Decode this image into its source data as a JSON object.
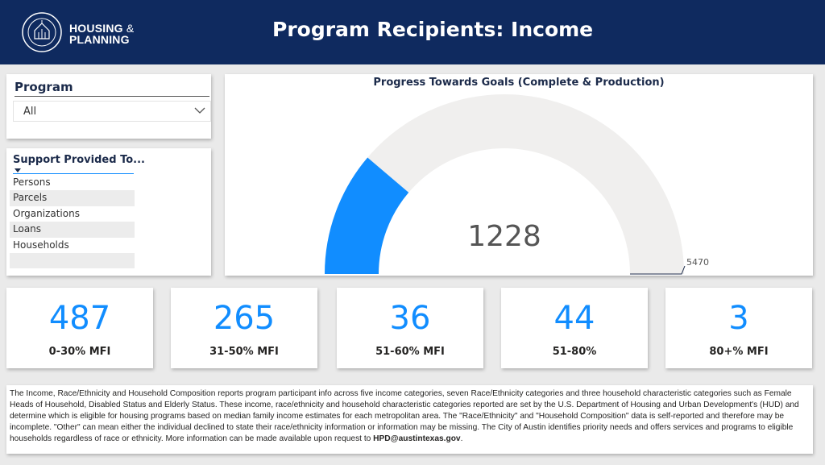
{
  "header": {
    "brand_line1": "HOUSING",
    "brand_amp": "&",
    "brand_line2": "PLANNING",
    "title": "Program Recipients: Income"
  },
  "program_filter": {
    "label": "Program",
    "selected": "All"
  },
  "support_filter": {
    "label": "Support Provided To...",
    "items": [
      "Persons",
      "Parcels",
      "Organizations",
      "Loans",
      "Households",
      ""
    ]
  },
  "gauge": {
    "title": "Progress Towards Goals (Complete & Production)",
    "value_label": "1228",
    "target_label": "5470",
    "value": 1228,
    "target": 5470,
    "fill_color": "#118dff",
    "track_color": "#f0efee"
  },
  "kpis": [
    {
      "value": "487",
      "label": "0-30% MFI"
    },
    {
      "value": "265",
      "label": "31-50% MFI"
    },
    {
      "value": "36",
      "label": "51-60% MFI"
    },
    {
      "value": "44",
      "label": "51-80%"
    },
    {
      "value": "3",
      "label": "80+% MFI"
    }
  ],
  "footnote": {
    "text": "The Income, Race/Ethnicity and Household Composition reports program participant info across five income categories, seven Race/Ethnicity categories and three household characteristic categories such as Female Heads of Household, Disabled Status and Elderly Status.  These income, race/ethnicity and household characteristic categories reported are set by the U.S. Department of Housing and Urban Development's (HUD) and determine which is eligible for housing programs based on median family income estimates for each metropolitan area.  The \"Race/Ethnicity\" and \"Household Composition\" data is self-reported and therefore may be incomplete.  \"Other\" can mean either the individual declined to state their race/ethnicity information or information may be missing.  The City of Austin identifies priority needs and offers services and programs to eligible households regardless of race or ethnicity.  More information can be made available upon request to ",
    "email": "HPD@austintexas.gov",
    "end": "."
  },
  "colors": {
    "header_bg": "#0f2a5f",
    "accent": "#118dff"
  }
}
